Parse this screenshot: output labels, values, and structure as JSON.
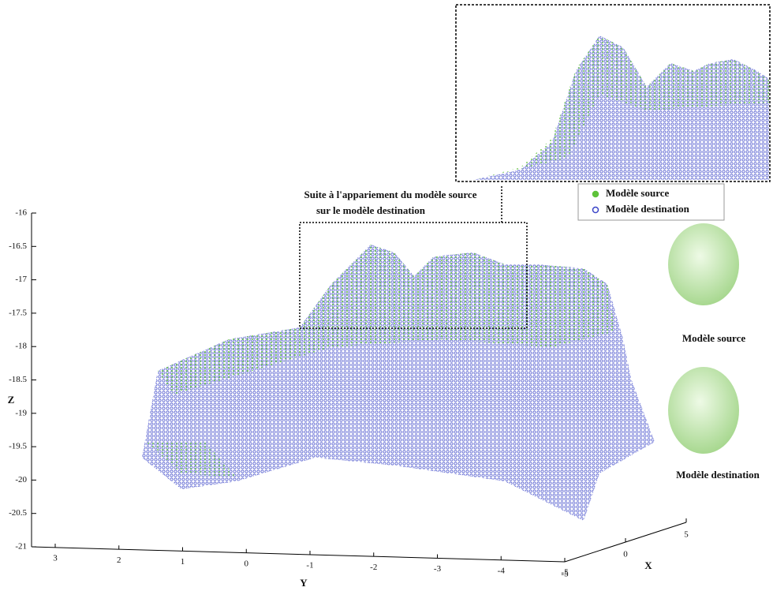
{
  "chart_data": {
    "type": "scatter3d",
    "annotation": [
      "Suite à l'appariement du modèle source",
      "sur le modèle destination"
    ],
    "series": [
      {
        "name": "Modèle source",
        "color": "#5ec23a"
      },
      {
        "name": "Modèle destination",
        "color": "#3a44c8"
      }
    ],
    "zlabel": "Z",
    "ylabel": "Y",
    "xlabel": "X",
    "zlim": [
      -21,
      -16
    ],
    "zticks": [
      -16,
      -16.5,
      -17,
      -17.5,
      -18,
      -18.5,
      -19,
      -19.5,
      -20,
      -20.5,
      -21
    ],
    "ylim": [
      -5,
      3
    ],
    "yticks": [
      3,
      2,
      1,
      0,
      -1,
      -2,
      -3,
      -4,
      -5
    ],
    "xlim": [
      -5,
      5
    ],
    "xticks": [
      -5,
      0,
      5
    ],
    "face_labels": [
      "Modèle source",
      "Modèle destination"
    ]
  }
}
